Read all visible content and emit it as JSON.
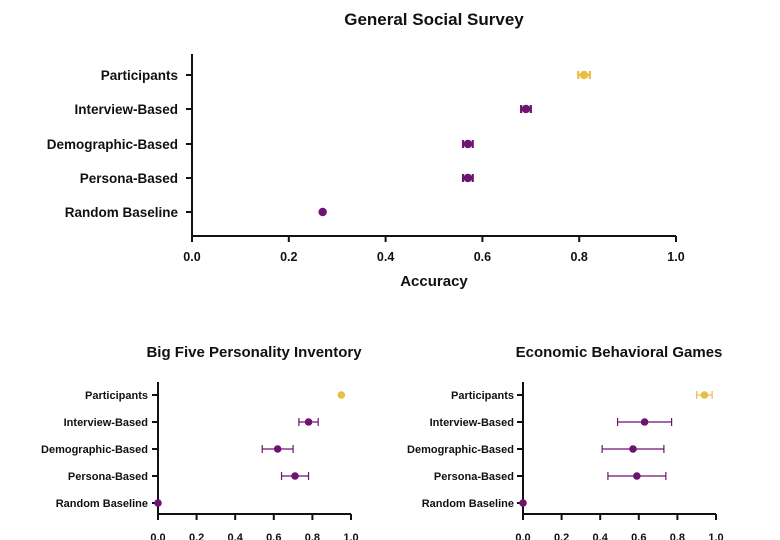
{
  "colors": {
    "participants": "#E8BE45",
    "model": "#6E1470",
    "axis": "#111111"
  },
  "chart_data": [
    {
      "id": "gss",
      "type": "scatter",
      "subtype": "dot-with-error-bars",
      "title": "General Social Survey",
      "xlabel": "Accuracy",
      "xlim": [
        0.0,
        1.0
      ],
      "xticks": [
        "0.0",
        "0.2",
        "0.4",
        "0.6",
        "0.8",
        "1.0"
      ],
      "categories": [
        "Participants",
        "Interview-Based",
        "Demographic-Based",
        "Persona-Based",
        "Random Baseline"
      ],
      "values": [
        0.81,
        0.69,
        0.57,
        0.57,
        0.27
      ],
      "errors": [
        0.012,
        0.01,
        0.01,
        0.01,
        0.0
      ]
    },
    {
      "id": "bfi",
      "type": "scatter",
      "subtype": "dot-with-error-bars",
      "title": "Big Five Personality Inventory",
      "xlabel": "",
      "xlim": [
        0.0,
        1.0
      ],
      "xticks": [
        "0.0",
        "0.2",
        "0.4",
        "0.6",
        "0.8",
        "1.0"
      ],
      "categories": [
        "Participants",
        "Interview-Based",
        "Demographic-Based",
        "Persona-Based",
        "Random Baseline"
      ],
      "values": [
        0.95,
        0.78,
        0.62,
        0.71,
        0.0
      ],
      "errors": [
        0.0,
        0.05,
        0.08,
        0.07,
        0.0
      ]
    },
    {
      "id": "ebg",
      "type": "scatter",
      "subtype": "dot-with-error-bars",
      "title": "Economic Behavioral Games",
      "xlabel": "",
      "xlim": [
        0.0,
        1.0
      ],
      "xticks": [
        "0.0",
        "0.2",
        "0.4",
        "0.6",
        "0.8",
        "1.0"
      ],
      "categories": [
        "Participants",
        "Interview-Based",
        "Demographic-Based",
        "Persona-Based",
        "Random Baseline"
      ],
      "values": [
        0.94,
        0.63,
        0.57,
        0.59,
        0.0
      ],
      "errors": [
        0.04,
        0.14,
        0.16,
        0.15,
        0.0
      ]
    }
  ]
}
